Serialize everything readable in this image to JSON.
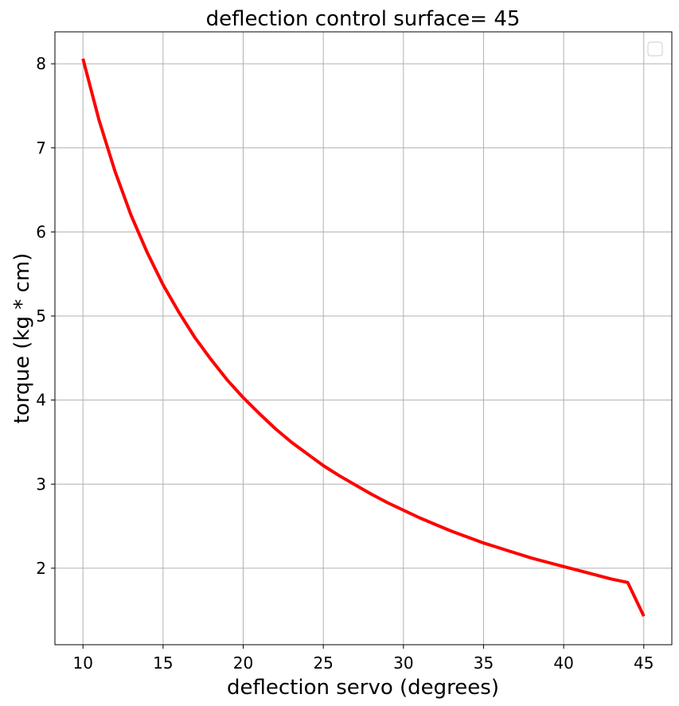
{
  "chart_data": {
    "type": "line",
    "title": "deflection control surface= 45",
    "xlabel": "deflection servo (degrees)",
    "ylabel": "torque (kg * cm)",
    "xlim": [
      8.25,
      46.75
    ],
    "ylim": [
      1.09,
      8.38
    ],
    "xticks": [
      10,
      15,
      20,
      25,
      30,
      35,
      40,
      45
    ],
    "yticks": [
      2,
      3,
      4,
      5,
      6,
      7,
      8
    ],
    "grid": true,
    "legend": "top-right (empty)",
    "series": [
      {
        "color": "#ff0000",
        "x": [
          10,
          11,
          12,
          13,
          14,
          15,
          16,
          17,
          18,
          19,
          20,
          21,
          22,
          23,
          24,
          25,
          26,
          27,
          28,
          29,
          30,
          31,
          32,
          33,
          34,
          35,
          36,
          37,
          38,
          39,
          40,
          41,
          42,
          43,
          44,
          45
        ],
        "y": [
          8.06,
          7.33,
          6.72,
          6.2,
          5.76,
          5.37,
          5.04,
          4.74,
          4.48,
          4.24,
          4.03,
          3.84,
          3.66,
          3.5,
          3.36,
          3.22,
          3.1,
          2.99,
          2.88,
          2.78,
          2.69,
          2.6,
          2.52,
          2.44,
          2.37,
          2.3,
          2.24,
          2.18,
          2.12,
          2.07,
          2.02,
          1.97,
          1.92,
          1.87,
          1.83,
          1.43
        ]
      }
    ]
  },
  "colors": {
    "line": "#ff0000",
    "grid": "#b0b0b0",
    "axes": "#000000",
    "legend_border": "#cccccc"
  }
}
